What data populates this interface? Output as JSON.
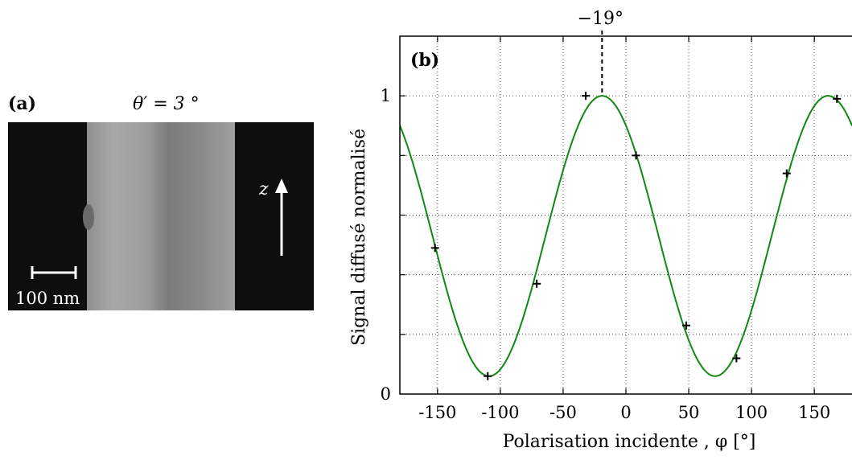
{
  "panel_a": {
    "label": "(a)",
    "title": "θ′ = 3 °",
    "scale_bar_label": "100 nm",
    "axis_symbol": "z"
  },
  "chart_data": {
    "type": "scatter",
    "panel_label": "(b)",
    "title": "",
    "xlabel": "Polarisation incidente , φ [°]",
    "ylabel": "Signal diffusé normalisé",
    "xlim": [
      -180,
      180
    ],
    "ylim": [
      0,
      1.2
    ],
    "xticks": [
      -150,
      -100,
      -50,
      0,
      50,
      100,
      150
    ],
    "xtick_labels": [
      "-150",
      "-100",
      "-50",
      "0",
      "50",
      "100",
      "150"
    ],
    "yticks": [
      0,
      1
    ],
    "ytick_labels": [
      "0",
      "1"
    ],
    "grid": true,
    "grid_x": [
      -150,
      -100,
      -50,
      0,
      50,
      100,
      150
    ],
    "grid_y": [
      0.2,
      0.4,
      0.6,
      0.8,
      1.0
    ],
    "annotation": {
      "text": "−19°",
      "x": -19
    },
    "points": {
      "x": [
        -152,
        -110,
        -71,
        -32,
        8,
        48,
        88,
        128,
        168
      ],
      "y": [
        0.49,
        0.06,
        0.37,
        1.0,
        0.8,
        0.23,
        0.12,
        0.74,
        0.99
      ]
    },
    "fit": {
      "model": "sinusoid",
      "baseline": 0.06,
      "amplitude": 0.94,
      "phase_deg": -19,
      "period_deg": 180
    },
    "colors": {
      "fit_line": "#118811",
      "points": "#000000",
      "grid": "#555555"
    }
  }
}
